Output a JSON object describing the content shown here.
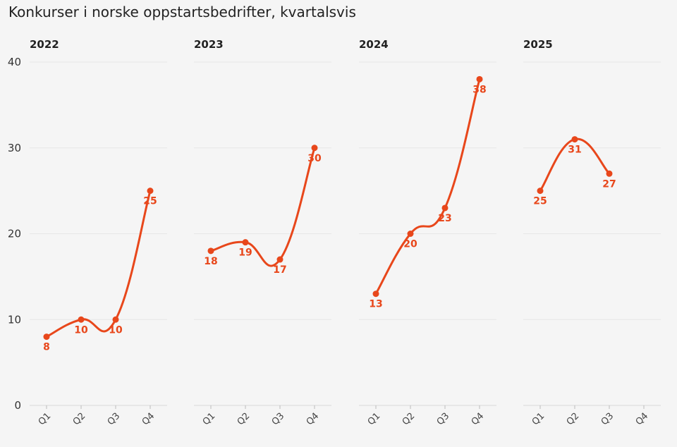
{
  "title": "Konkurser i norske oppstartsbedrifter, kvartalsvis",
  "colors": {
    "series": "#e8471b",
    "background": "#f5f5f5",
    "grid": "#e6e6e6"
  },
  "chart_data": {
    "type": "line",
    "title": "Konkurser i norske oppstartsbedrifter, kvartalsvis",
    "xlabel": "",
    "ylabel": "",
    "ylim": [
      0,
      40
    ],
    "yticks": [
      0,
      10,
      20,
      30,
      40
    ],
    "categories": [
      "Q1",
      "Q2",
      "Q3",
      "Q4"
    ],
    "grid": true,
    "data_labels": true,
    "panels": [
      {
        "title": "2022",
        "values": [
          8,
          10,
          10,
          25
        ]
      },
      {
        "title": "2023",
        "values": [
          18,
          19,
          17,
          30
        ]
      },
      {
        "title": "2024",
        "values": [
          13,
          20,
          23,
          38
        ]
      },
      {
        "title": "2025",
        "values": [
          25,
          31,
          27,
          null
        ]
      }
    ]
  }
}
